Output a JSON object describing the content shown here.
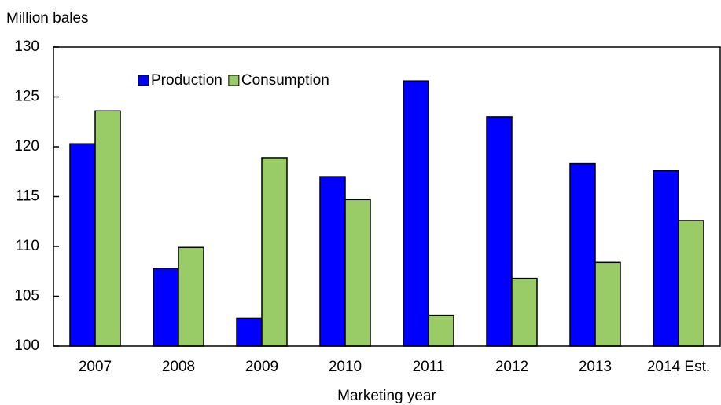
{
  "chart_data": {
    "type": "bar",
    "y_label": "Million bales",
    "x_label": "Marketing year",
    "categories": [
      "2007",
      "2008",
      "2009",
      "2010",
      "2011",
      "2012",
      "2013",
      "2014 Est."
    ],
    "series": [
      {
        "name": "Production",
        "color": "#0000ff",
        "values": [
          120.3,
          107.8,
          102.8,
          117.0,
          126.6,
          123.0,
          118.3,
          117.6
        ]
      },
      {
        "name": "Consumption",
        "color": "#99cc66",
        "values": [
          123.6,
          109.9,
          118.9,
          114.7,
          103.1,
          106.8,
          108.4,
          112.6
        ]
      }
    ],
    "ylim": [
      100,
      130
    ],
    "yticks": [
      100,
      105,
      110,
      115,
      120,
      125,
      130
    ]
  }
}
